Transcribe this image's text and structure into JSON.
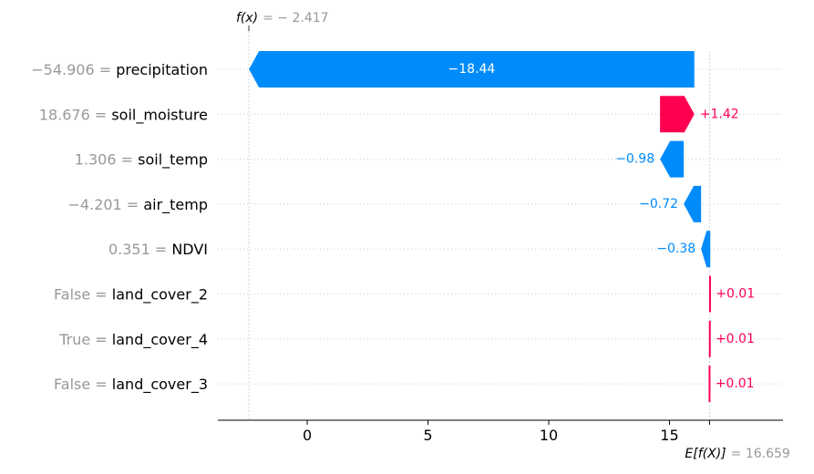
{
  "chart_data": {
    "type": "waterfall",
    "title": "",
    "base_value": 16.659,
    "base_value_prefix": "E[f(X)]",
    "base_value_label": "= 16.659",
    "final_value": -2.417,
    "final_value_prefix": "f(x)",
    "final_value_label": "= − 2.417",
    "xlim": [
      -3.7,
      19.7
    ],
    "xticks": [
      0,
      5,
      10,
      15
    ],
    "xtick_labels": [
      "0",
      "5",
      "10",
      "15"
    ],
    "grid": "horizontal dotted",
    "rows": [
      {
        "feature": "precipitation",
        "feature_value": "−54.906",
        "contribution": -18.44,
        "label": "−18.44"
      },
      {
        "feature": "soil_moisture",
        "feature_value": "18.676",
        "contribution": 1.42,
        "label": "+1.42"
      },
      {
        "feature": "soil_temp",
        "feature_value": "1.306",
        "contribution": -0.98,
        "label": "−0.98"
      },
      {
        "feature": "air_temp",
        "feature_value": "−4.201",
        "contribution": -0.72,
        "label": "−0.72"
      },
      {
        "feature": "NDVI",
        "feature_value": "0.351",
        "contribution": -0.38,
        "label": "−0.38"
      },
      {
        "feature": "land_cover_2",
        "feature_value": "False",
        "contribution": 0.01,
        "label": "+0.01"
      },
      {
        "feature": "land_cover_4",
        "feature_value": "True",
        "contribution": 0.01,
        "label": "+0.01"
      },
      {
        "feature": "land_cover_3",
        "feature_value": "False",
        "contribution": 0.01,
        "label": "+0.01"
      }
    ],
    "colors": {
      "positive": "#ff0051",
      "negative": "#008bfb",
      "value_text": "#999999",
      "label_text": "#000000",
      "axis": "#000000",
      "grid": "#cccccc",
      "inside_label": "#ffffff"
    }
  }
}
